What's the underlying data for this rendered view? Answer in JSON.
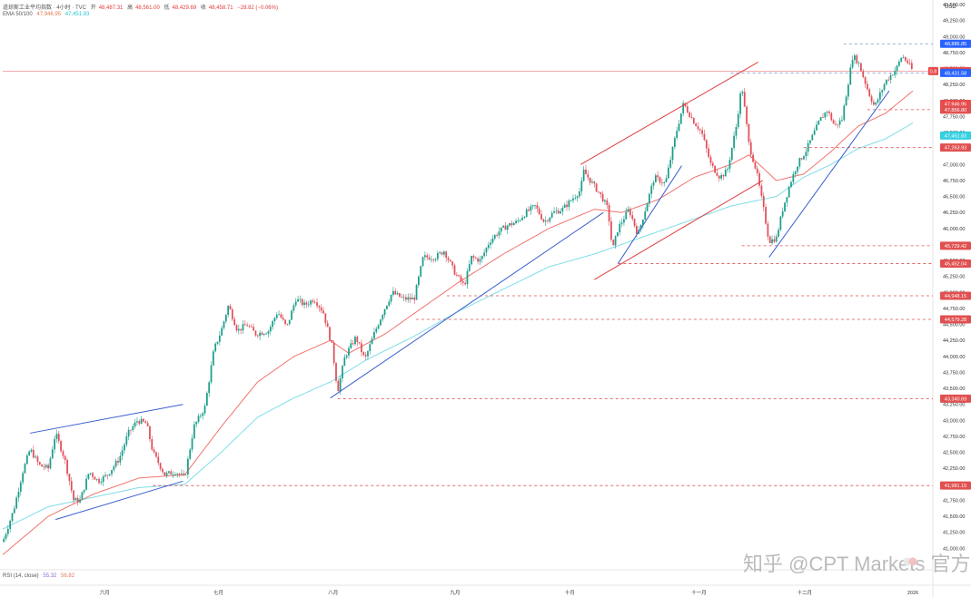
{
  "header": {
    "title": "道琼斯工业平均指数 · 4小时 · TVC",
    "open": "48,487.31",
    "high": "48,561.00",
    "low": "48,429.69",
    "close": "48,458.71",
    "change": "−28.82 (−0.06%)",
    "open_label": "开",
    "high_label": "高",
    "low_label": "低",
    "close_label": "收",
    "ema_label": "EMA 50/100",
    "ema50_value": "47,946.95",
    "ema100_value": "47,451.83",
    "rsi_label": "RSI (14, close)",
    "rsi_value": "55.32",
    "rsi_ma_value": "56.82"
  },
  "watermark": "知乎 @CPT Markets 官方",
  "currency": "USD",
  "colors": {
    "up": "#1e9e8c",
    "down": "#e0505a",
    "ema50": "#f0746e",
    "ema100": "#7fdde8",
    "trend_blue": "#3a5fcd",
    "trend_red": "#e03c3c",
    "level_red": "#e05050",
    "level_blue": "#2962ff"
  },
  "chart_data": {
    "type": "candlestick",
    "y_axis": {
      "min": 40750,
      "max": 49500,
      "ticks": [
        "41,000.00",
        "41,250.00",
        "41,500.00",
        "41,750.00",
        "42,000.00",
        "42,250.00",
        "42,500.00",
        "42,750.00",
        "43,000.00",
        "43,250.00",
        "43,500.00",
        "43,750.00",
        "44,000.00",
        "44,250.00",
        "44,500.00",
        "44,750.00",
        "45,000.00",
        "45,250.00",
        "45,500.00",
        "45,750.00",
        "46,000.00",
        "46,250.00",
        "46,500.00",
        "46,750.00",
        "47,000.00",
        "47,250.00",
        "47,500.00",
        "47,750.00",
        "48,000.00",
        "48,250.00",
        "48,500.00",
        "48,750.00",
        "49,000.00",
        "49,250.00",
        "49,500.00"
      ]
    },
    "x_axis": {
      "labels": [
        {
          "text": "六月",
          "t": 0.112
        },
        {
          "text": "七月",
          "t": 0.237
        },
        {
          "text": "八月",
          "t": 0.363
        },
        {
          "text": "九月",
          "t": 0.497
        },
        {
          "text": "十月",
          "t": 0.623
        },
        {
          "text": "十一月",
          "t": 0.765
        },
        {
          "text": "十二月",
          "t": 0.881
        },
        {
          "text": "2026",
          "t": 1.0
        }
      ]
    },
    "candle_anchors": [
      [
        0.0,
        41100
      ],
      [
        0.012,
        41600
      ],
      [
        0.022,
        42200
      ],
      [
        0.03,
        42550
      ],
      [
        0.04,
        42300
      ],
      [
        0.05,
        42250
      ],
      [
        0.058,
        42800
      ],
      [
        0.068,
        42400
      ],
      [
        0.078,
        41750
      ],
      [
        0.085,
        41750
      ],
      [
        0.095,
        42200
      ],
      [
        0.105,
        42050
      ],
      [
        0.115,
        42150
      ],
      [
        0.128,
        42400
      ],
      [
        0.138,
        42800
      ],
      [
        0.148,
        43000
      ],
      [
        0.158,
        42950
      ],
      [
        0.165,
        42500
      ],
      [
        0.178,
        42150
      ],
      [
        0.19,
        42200
      ],
      [
        0.2,
        42100
      ],
      [
        0.21,
        42900
      ],
      [
        0.222,
        43200
      ],
      [
        0.232,
        44100
      ],
      [
        0.24,
        44400
      ],
      [
        0.248,
        44800
      ],
      [
        0.258,
        44400
      ],
      [
        0.268,
        44500
      ],
      [
        0.278,
        44350
      ],
      [
        0.292,
        44400
      ],
      [
        0.302,
        44700
      ],
      [
        0.312,
        44450
      ],
      [
        0.322,
        44900
      ],
      [
        0.332,
        44800
      ],
      [
        0.342,
        44900
      ],
      [
        0.352,
        44700
      ],
      [
        0.362,
        44150
      ],
      [
        0.368,
        43450
      ],
      [
        0.376,
        44000
      ],
      [
        0.388,
        44300
      ],
      [
        0.398,
        43950
      ],
      [
        0.408,
        44350
      ],
      [
        0.418,
        44700
      ],
      [
        0.428,
        45000
      ],
      [
        0.44,
        44900
      ],
      [
        0.452,
        44900
      ],
      [
        0.462,
        45550
      ],
      [
        0.475,
        45550
      ],
      [
        0.485,
        45650
      ],
      [
        0.497,
        45300
      ],
      [
        0.507,
        45100
      ],
      [
        0.515,
        45550
      ],
      [
        0.525,
        45500
      ],
      [
        0.535,
        45800
      ],
      [
        0.545,
        45950
      ],
      [
        0.555,
        46050
      ],
      [
        0.565,
        46100
      ],
      [
        0.575,
        46250
      ],
      [
        0.585,
        46350
      ],
      [
        0.595,
        46100
      ],
      [
        0.605,
        46250
      ],
      [
        0.615,
        46300
      ],
      [
        0.625,
        46450
      ],
      [
        0.635,
        46600
      ],
      [
        0.638,
        46900
      ],
      [
        0.648,
        46700
      ],
      [
        0.658,
        46500
      ],
      [
        0.665,
        46300
      ],
      [
        0.67,
        45650
      ],
      [
        0.676,
        46000
      ],
      [
        0.688,
        46300
      ],
      [
        0.698,
        45900
      ],
      [
        0.708,
        46400
      ],
      [
        0.716,
        46800
      ],
      [
        0.728,
        46700
      ],
      [
        0.74,
        47500
      ],
      [
        0.748,
        47950
      ],
      [
        0.758,
        47700
      ],
      [
        0.768,
        47500
      ],
      [
        0.778,
        47000
      ],
      [
        0.788,
        46800
      ],
      [
        0.796,
        46900
      ],
      [
        0.806,
        47600
      ],
      [
        0.812,
        48250
      ],
      [
        0.82,
        47300
      ],
      [
        0.828,
        46900
      ],
      [
        0.836,
        46300
      ],
      [
        0.842,
        45800
      ],
      [
        0.85,
        45850
      ],
      [
        0.857,
        46300
      ],
      [
        0.865,
        46700
      ],
      [
        0.873,
        47000
      ],
      [
        0.882,
        47200
      ],
      [
        0.89,
        47450
      ],
      [
        0.898,
        47700
      ],
      [
        0.906,
        47850
      ],
      [
        0.914,
        47600
      ],
      [
        0.922,
        47700
      ],
      [
        0.928,
        48200
      ],
      [
        0.934,
        48700
      ],
      [
        0.94,
        48600
      ],
      [
        0.946,
        48350
      ],
      [
        0.952,
        48100
      ],
      [
        0.958,
        47900
      ],
      [
        0.964,
        48100
      ],
      [
        0.97,
        48300
      ],
      [
        0.976,
        48400
      ],
      [
        0.982,
        48500
      ],
      [
        0.988,
        48700
      ],
      [
        0.994,
        48600
      ],
      [
        1.0,
        48460
      ]
    ],
    "ema50_anchors": [
      [
        0.0,
        40900
      ],
      [
        0.05,
        41500
      ],
      [
        0.1,
        41850
      ],
      [
        0.15,
        42100
      ],
      [
        0.2,
        42150
      ],
      [
        0.24,
        42900
      ],
      [
        0.28,
        43600
      ],
      [
        0.32,
        44000
      ],
      [
        0.36,
        44250
      ],
      [
        0.38,
        44050
      ],
      [
        0.42,
        44350
      ],
      [
        0.46,
        44750
      ],
      [
        0.5,
        45150
      ],
      [
        0.55,
        45600
      ],
      [
        0.6,
        46000
      ],
      [
        0.65,
        46300
      ],
      [
        0.68,
        46250
      ],
      [
        0.72,
        46450
      ],
      [
        0.76,
        46800
      ],
      [
        0.8,
        47000
      ],
      [
        0.82,
        47150
      ],
      [
        0.85,
        46750
      ],
      [
        0.88,
        46850
      ],
      [
        0.91,
        47200
      ],
      [
        0.94,
        47600
      ],
      [
        0.97,
        47800
      ],
      [
        1.0,
        48150
      ]
    ],
    "ema100_anchors": [
      [
        0.0,
        41300
      ],
      [
        0.05,
        41650
      ],
      [
        0.1,
        41800
      ],
      [
        0.15,
        41950
      ],
      [
        0.2,
        42000
      ],
      [
        0.24,
        42500
      ],
      [
        0.28,
        43050
      ],
      [
        0.32,
        43350
      ],
      [
        0.36,
        43600
      ],
      [
        0.4,
        43950
      ],
      [
        0.45,
        44300
      ],
      [
        0.5,
        44700
      ],
      [
        0.55,
        45050
      ],
      [
        0.6,
        45400
      ],
      [
        0.65,
        45600
      ],
      [
        0.7,
        45850
      ],
      [
        0.75,
        46100
      ],
      [
        0.8,
        46350
      ],
      [
        0.85,
        46500
      ],
      [
        0.88,
        46800
      ],
      [
        0.91,
        47000
      ],
      [
        0.94,
        47250
      ],
      [
        0.97,
        47400
      ],
      [
        1.0,
        47650
      ]
    ],
    "trendlines": [
      {
        "color": "blue",
        "from": [
          0.03,
          42800
        ],
        "to": [
          0.198,
          43250
        ]
      },
      {
        "color": "blue",
        "from": [
          0.058,
          41450
        ],
        "to": [
          0.198,
          42050
        ]
      },
      {
        "color": "blue",
        "from": [
          0.36,
          43350
        ],
        "to": [
          0.66,
          46250
        ]
      },
      {
        "color": "blue",
        "from": [
          0.676,
          45450
        ],
        "to": [
          0.746,
          46980
        ]
      },
      {
        "color": "blue",
        "from": [
          0.842,
          45550
        ],
        "to": [
          0.974,
          48150
        ]
      },
      {
        "color": "red",
        "from": [
          0.635,
          47000
        ],
        "to": [
          0.83,
          48600
        ]
      },
      {
        "color": "red",
        "from": [
          0.65,
          45200
        ],
        "to": [
          0.835,
          46750
        ]
      }
    ],
    "horizontal_levels": [
      {
        "value": "48,886.85",
        "y": 48886.85,
        "style": "blue",
        "from": 0.924
      },
      {
        "value": "48,458.71",
        "y": 48458.71,
        "style": "price",
        "from": 0.0
      },
      {
        "value": "48,431.58",
        "y": 48431.58,
        "style": "blue",
        "from": 0.8
      },
      {
        "value": "47,946.95",
        "y": 47946.95,
        "style": "ema50",
        "from": null
      },
      {
        "value": "47,856.80",
        "y": 47856.8,
        "style": "red",
        "from": 0.95
      },
      {
        "value": "47,451.83",
        "y": 47451.83,
        "style": "ema100",
        "from": null
      },
      {
        "value": "47,263.93",
        "y": 47263.93,
        "style": "red",
        "from": 0.88
      },
      {
        "value": "45,729.42",
        "y": 45729.42,
        "style": "red",
        "from": 0.812
      },
      {
        "value": "45,452.04",
        "y": 45452.04,
        "style": "red",
        "from": 0.676
      },
      {
        "value": "44,948.15",
        "y": 44948.15,
        "style": "red",
        "from": 0.488
      },
      {
        "value": "44,579.28",
        "y": 44579.28,
        "style": "red",
        "from": 0.454
      },
      {
        "value": "43,340.69",
        "y": 43340.69,
        "style": "red",
        "from": 0.368
      },
      {
        "value": "41,981.15",
        "y": 41981.15,
        "style": "red",
        "from": 0.165
      }
    ],
    "price_flag": "0.8"
  }
}
